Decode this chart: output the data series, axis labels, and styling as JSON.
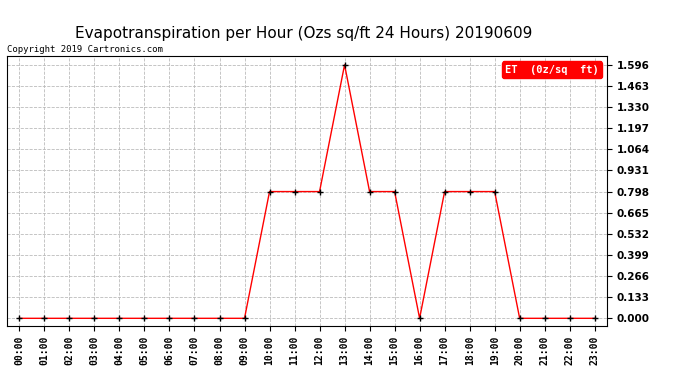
{
  "title": "Evapotranspiration per Hour (Ozs sq/ft 24 Hours) 20190609",
  "copyright": "Copyright 2019 Cartronics.com",
  "legend_label": "ET  (0z/sq  ft)",
  "hours": [
    0,
    1,
    2,
    3,
    4,
    5,
    6,
    7,
    8,
    9,
    10,
    11,
    12,
    13,
    14,
    15,
    16,
    17,
    18,
    19,
    20,
    21,
    22,
    23
  ],
  "values": [
    0.0,
    0.0,
    0.0,
    0.0,
    0.0,
    0.0,
    0.0,
    0.0,
    0.0,
    0.0,
    0.798,
    0.798,
    0.798,
    1.596,
    0.798,
    0.798,
    0.0,
    0.798,
    0.798,
    0.798,
    0.0,
    0.0,
    0.0,
    0.0
  ],
  "line_color": "#ff0000",
  "marker_color": "#000000",
  "background_color": "#ffffff",
  "grid_color": "#bbbbbb",
  "ylim_min": -0.05,
  "ylim_max": 1.65,
  "yticks": [
    0.0,
    0.133,
    0.266,
    0.399,
    0.532,
    0.665,
    0.798,
    0.931,
    1.064,
    1.197,
    1.33,
    1.463,
    1.596
  ],
  "title_fontsize": 11,
  "copyright_fontsize": 6.5,
  "tick_fontsize": 7,
  "legend_bg": "#ff0000",
  "legend_text_color": "#ffffff",
  "legend_fontsize": 7.5
}
